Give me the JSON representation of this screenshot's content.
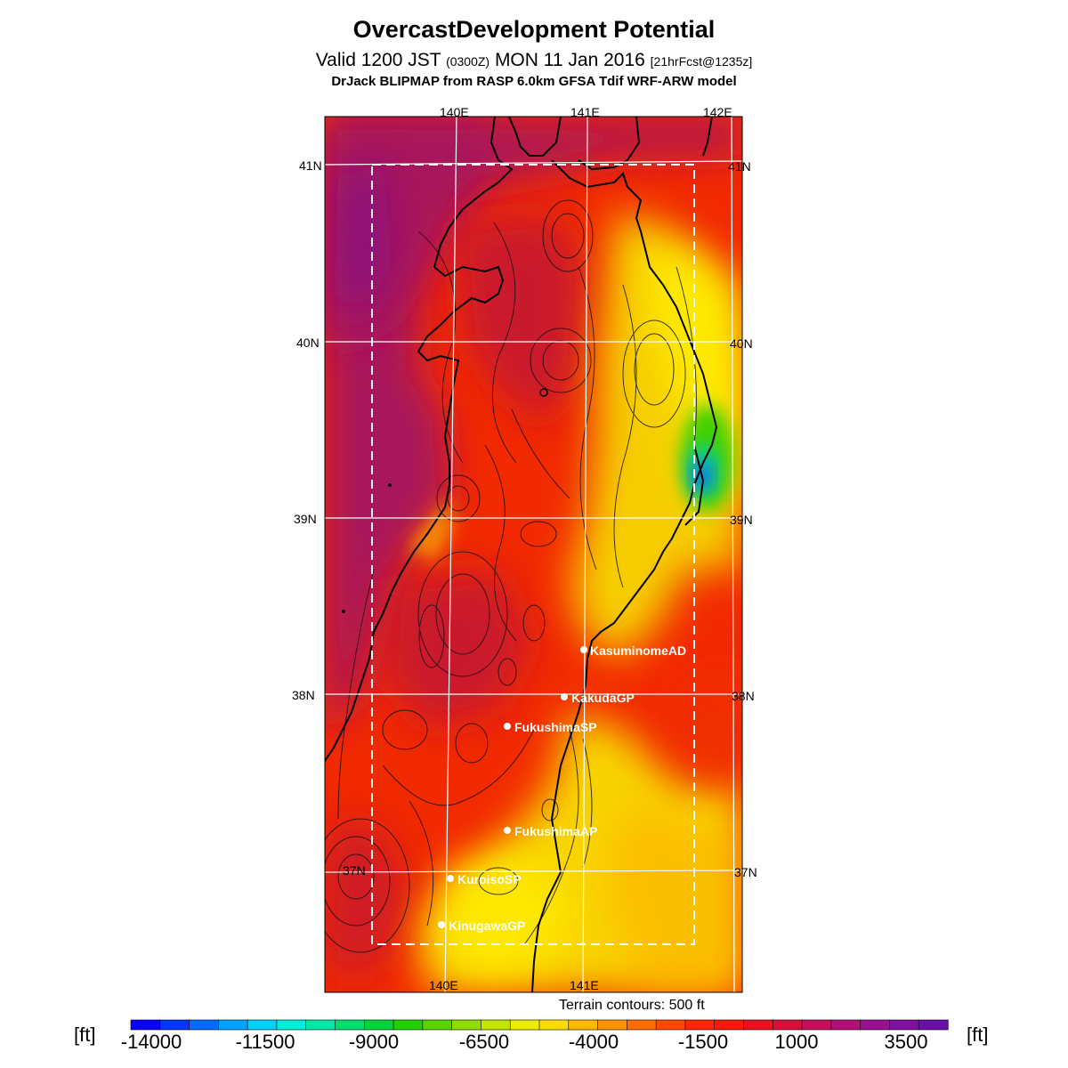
{
  "title": "OvercastDevelopment Potential",
  "subtitle": {
    "valid_prefix": "Valid 1200 JST",
    "utc": "(0300Z)",
    "date": "MON 11 Jan 2016",
    "forecast": "[21hrFcst@1235z]"
  },
  "model_line": "DrJack BLIPMAP from RASP 6.0km GFSA Tdif WRF-ARW model",
  "map": {
    "lon_labels_top": [
      "140E",
      "141E",
      "142E"
    ],
    "lon_labels_bottom": [
      "140E",
      "141E"
    ],
    "lat_labels": [
      "41N",
      "40N",
      "39N",
      "38N",
      "37N"
    ],
    "sites": [
      {
        "name": "KasuminomeAD"
      },
      {
        "name": "KakudaGP"
      },
      {
        "name": "FukushimaSP"
      },
      {
        "name": "FukushimaAP"
      },
      {
        "name": "KuroisoSP"
      },
      {
        "name": "KinugawaGP"
      }
    ]
  },
  "terrain_note": "Terrain contours: 500 ft",
  "colorbar": {
    "unit": "[ft]",
    "tick_labels": [
      "-14000",
      "-11500",
      "-9000",
      "-6500",
      "-4000",
      "-1500",
      "1000",
      "3500"
    ],
    "colors": [
      "#0a00ff",
      "#0036ff",
      "#006cff",
      "#00a2ff",
      "#00d2ff",
      "#00eede",
      "#00e8a8",
      "#00de70",
      "#00d43a",
      "#22d000",
      "#5ad400",
      "#90dc00",
      "#c4e400",
      "#eeec00",
      "#ffdc00",
      "#ffb800",
      "#ff9200",
      "#ff6c00",
      "#ff4a00",
      "#ff2800",
      "#f81a0a",
      "#e8121e",
      "#d8103c",
      "#c4105a",
      "#b01078",
      "#9a1090",
      "#8010a0",
      "#6a10a8"
    ]
  },
  "style_colors": {
    "background": "#ffffff",
    "ocean_west": "#a8185c",
    "land_main": "#f22a00",
    "high_region": "#c01238",
    "low_region": "#fff200",
    "grid": "#ffffff",
    "coast": "#000000"
  }
}
